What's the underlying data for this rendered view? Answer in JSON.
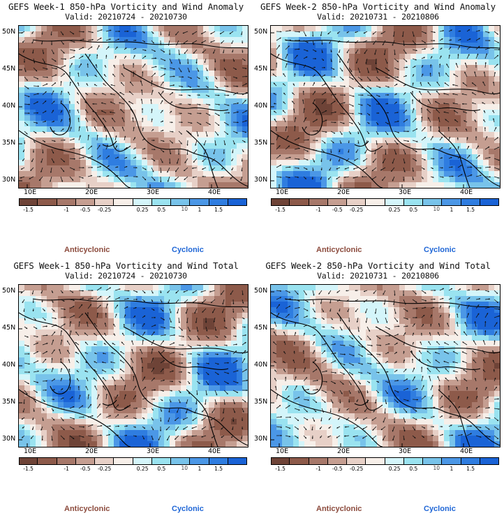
{
  "panels": [
    {
      "title": "GEFS Week-1 850-hPa Vorticity and Wind Anomaly",
      "valid": "Valid: 20210724 - 20210730"
    },
    {
      "title": "GEFS Week-2 850-hPa Vorticity and Wind Anomaly",
      "valid": "Valid: 20210731 - 20210806"
    },
    {
      "title": "GEFS Week-1 850-hPa Vorticity and Wind Total",
      "valid": "Valid: 20210724 - 20210730"
    },
    {
      "title": "GEFS Week-2 850-hPa Vorticity and Wind Total",
      "valid": "Valid: 20210731 - 20210806"
    }
  ],
  "axes": {
    "lat_labels": [
      "50N",
      "45N",
      "40N",
      "35N",
      "30N"
    ],
    "lon_labels": [
      "10E",
      "20E",
      "30E",
      "40E"
    ]
  },
  "colorbar": {
    "labels": [
      "-1.5",
      "-1",
      "-0.5",
      "-0.25",
      "0.25",
      "0.5",
      "1",
      "1.5"
    ],
    "scale_note": "10",
    "colors": [
      "#6e4337",
      "#8d5a4a",
      "#a7786a",
      "#c59e91",
      "#e7d0c7",
      "#f7efe9",
      "#d4f5fa",
      "#9ae3f0",
      "#78c3ea",
      "#4b97e6",
      "#2f7de0",
      "#1a63d6"
    ]
  },
  "legend": {
    "anticyclonic": "Anticyclonic",
    "cyclonic": "Cyclonic",
    "anticyclonic_color": "#8b4a3c",
    "cyclonic_color": "#1f66d6"
  }
}
